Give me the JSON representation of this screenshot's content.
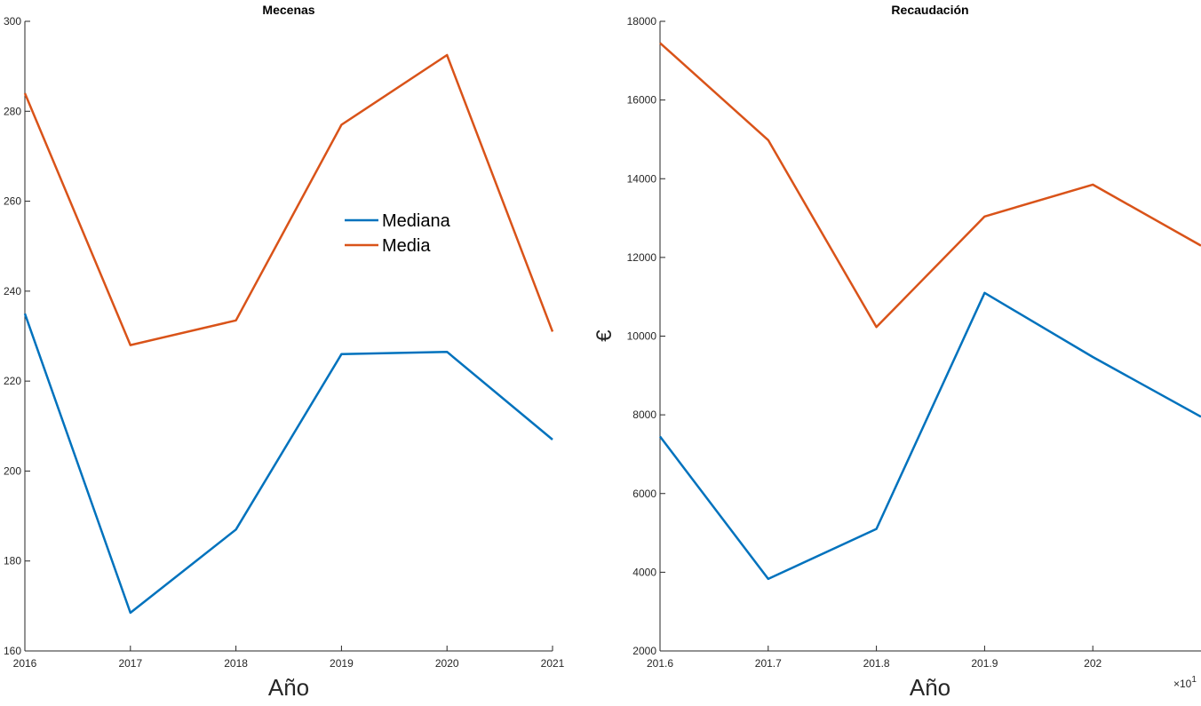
{
  "chart_data": [
    {
      "type": "line",
      "title": "Mecenas",
      "xlabel": "Año",
      "ylabel": "",
      "x": [
        2016,
        2017,
        2018,
        2019,
        2020,
        2021
      ],
      "xlim": [
        2016,
        2021
      ],
      "ylim": [
        160,
        300
      ],
      "xticks": [
        "2016",
        "2017",
        "2018",
        "2019",
        "2020",
        "2021"
      ],
      "yticks": [
        "160",
        "180",
        "200",
        "220",
        "240",
        "260",
        "280",
        "300"
      ],
      "grid": false,
      "legend": {
        "placement": "inside-center-right",
        "entries": [
          "Mediana",
          "Media"
        ]
      },
      "series": [
        {
          "name": "Mediana",
          "color": "#0072BD",
          "values": [
            235,
            168.5,
            187,
            226,
            226.5,
            207
          ]
        },
        {
          "name": "Media",
          "color": "#D95319",
          "values": [
            284,
            228,
            233.5,
            277,
            292.5,
            231
          ]
        }
      ]
    },
    {
      "type": "line",
      "title": "Recaudación",
      "xlabel": "Año",
      "ylabel": "€",
      "x": [
        2016,
        2017,
        2018,
        2019,
        2020,
        2021
      ],
      "xlim": [
        2016,
        2021
      ],
      "ylim": [
        2000,
        18000
      ],
      "xticks": [
        "201.6",
        "201.7",
        "201.8",
        "201.9",
        "202"
      ],
      "xtick_values": [
        2016,
        2017,
        2018,
        2019,
        2020
      ],
      "x_exponent_label": "×10",
      "x_exponent_power": "1",
      "yticks": [
        "2000",
        "4000",
        "6000",
        "8000",
        "10000",
        "12000",
        "14000",
        "16000",
        "18000"
      ],
      "grid": false,
      "legend": null,
      "series": [
        {
          "color": "#0072BD",
          "values": [
            7450,
            3830,
            5100,
            11100,
            9470,
            7950
          ]
        },
        {
          "color": "#D95319",
          "values": [
            17450,
            14980,
            10230,
            13040,
            13850,
            12300
          ]
        }
      ]
    }
  ]
}
